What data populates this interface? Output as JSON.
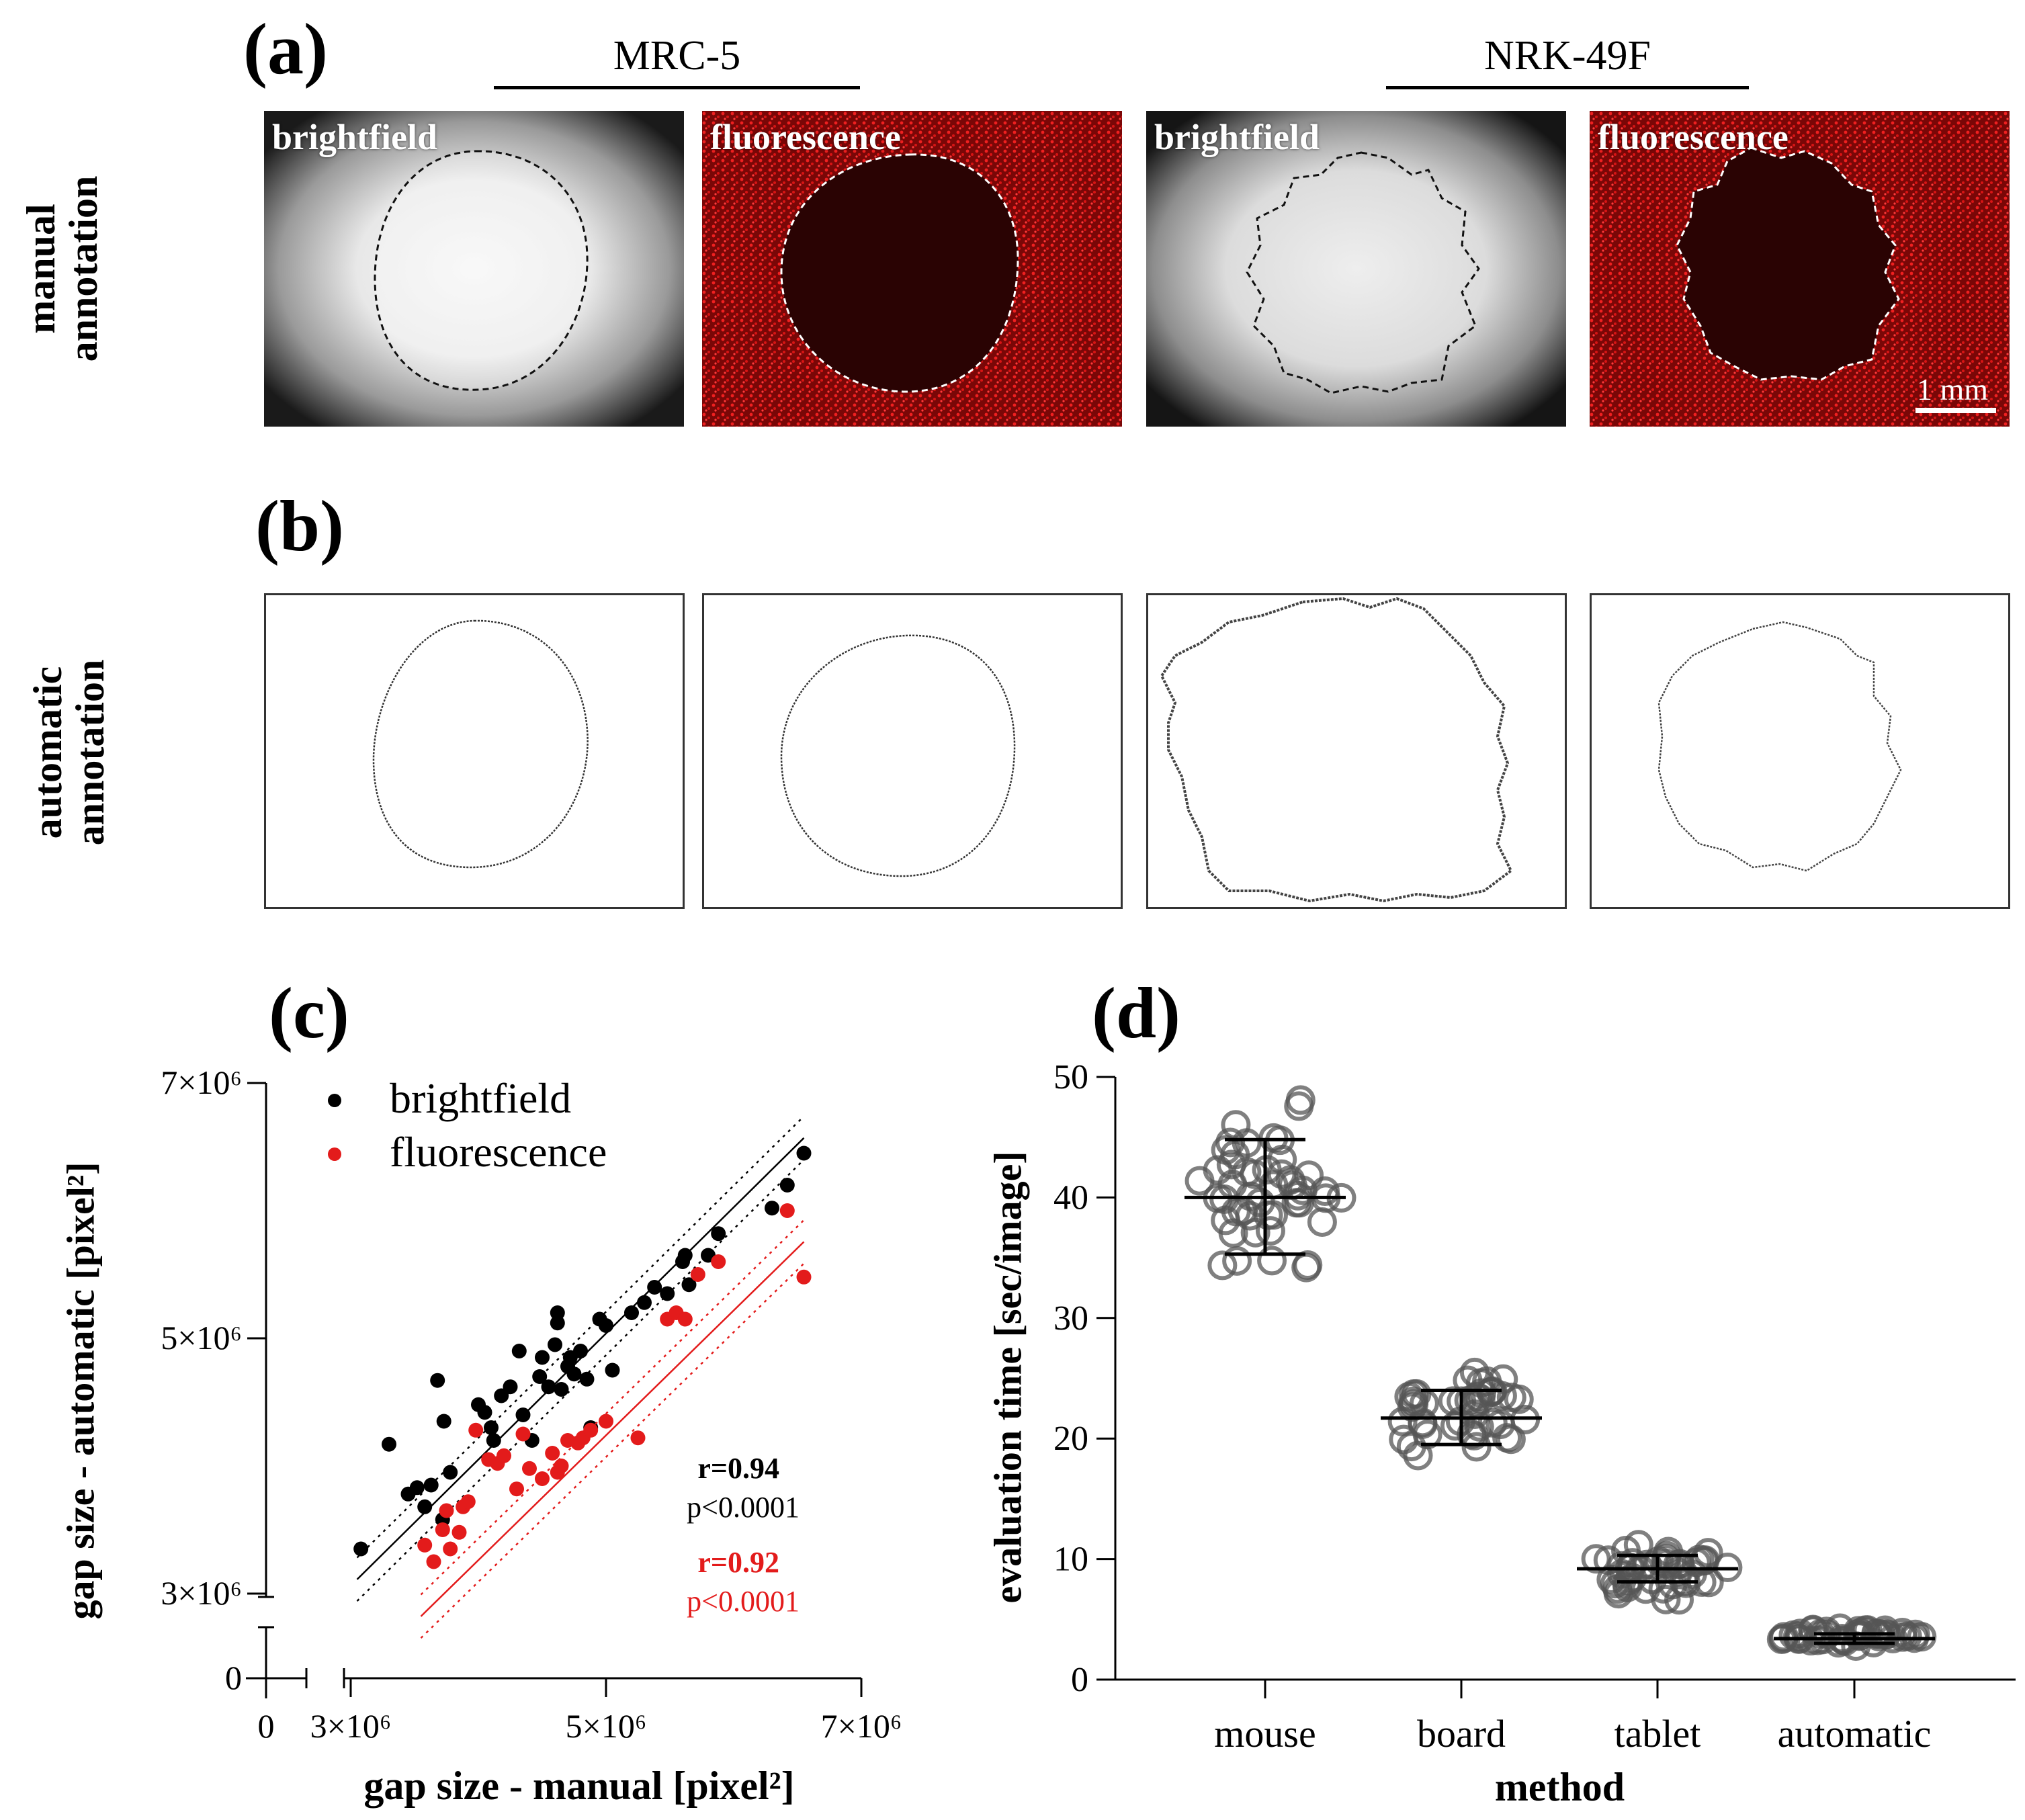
{
  "panels": {
    "a": "(a)",
    "b": "(b)",
    "c": "(c)",
    "d": "(d)"
  },
  "row_labels": {
    "manual": [
      "manual",
      "annotation"
    ],
    "automatic": [
      "automatic",
      "annotation"
    ]
  },
  "groups": [
    "MRC-5",
    "NRK-49F"
  ],
  "image_labels": [
    "brightfield",
    "fluorescence",
    "brightfield",
    "fluorescence"
  ],
  "scale_bar": "1 mm",
  "colors": {
    "red": "#e31b1b",
    "black": "#000000",
    "micro_red": "#c91010"
  },
  "chart_data": [
    {
      "type": "scatter",
      "panel": "(c)",
      "xlabel": "gap size - manual [pixel²]",
      "ylabel": "gap size - automatic [pixel²]",
      "xlim": [
        2500000,
        7000000
      ],
      "ylim": [
        2500000,
        7000000
      ],
      "x_ticks": [
        "0",
        "3×10⁶",
        "5×10⁶",
        "7×10⁶"
      ],
      "y_ticks": [
        "0",
        "3×10⁶",
        "5×10⁶",
        "7×10⁶"
      ],
      "axis_break": true,
      "legend_position": "top-left",
      "series": [
        {
          "name": "brightfield",
          "color": "#000000",
          "stats": [
            "r=0.94",
            "p<0.0001"
          ],
          "fit": {
            "slope": 0.988,
            "intercept": 98000
          },
          "points": [
            [
              3080000.0,
              3350000.0
            ],
            [
              3300000.0,
              4170000.0
            ],
            [
              3450000.0,
              3780000.0
            ],
            [
              3520000.0,
              3830000.0
            ],
            [
              3580000.0,
              3680000.0
            ],
            [
              3630000.0,
              3850000.0
            ],
            [
              3680000.0,
              4670000.0
            ],
            [
              3720000.0,
              3580000.0
            ],
            [
              3730000.0,
              4350000.0
            ],
            [
              3780000.0,
              3950000.0
            ],
            [
              4000000.0,
              4480000.0
            ],
            [
              4050000.0,
              4420000.0
            ],
            [
              4100000.0,
              4300000.0
            ],
            [
              4120000.0,
              4200000.0
            ],
            [
              4180000.0,
              4550000.0
            ],
            [
              4250000.0,
              4620000.0
            ],
            [
              4320000.0,
              4900000.0
            ],
            [
              4350000.0,
              4400000.0
            ],
            [
              4420000.0,
              4200000.0
            ],
            [
              4480000.0,
              4700000.0
            ],
            [
              4500000.0,
              4850000.0
            ],
            [
              4550000.0,
              4620000.0
            ],
            [
              4600000.0,
              4950000.0
            ],
            [
              4620000.0,
              5200000.0
            ],
            [
              4620000.0,
              5120000.0
            ],
            [
              4650000.0,
              4600000.0
            ],
            [
              4700000.0,
              4780000.0
            ],
            [
              4720000.0,
              4850000.0
            ],
            [
              4750000.0,
              4720000.0
            ],
            [
              4800000.0,
              4900000.0
            ],
            [
              4850000.0,
              4680000.0
            ],
            [
              4880000.0,
              4300000.0
            ],
            [
              4950000.0,
              5150000.0
            ],
            [
              5000000.0,
              5100000.0
            ],
            [
              5050000.0,
              4750000.0
            ],
            [
              5200000.0,
              5200000.0
            ],
            [
              5300000.0,
              5280000.0
            ],
            [
              5380000.0,
              5400000.0
            ],
            [
              5480000.0,
              5350000.0
            ],
            [
              5600000.0,
              5600000.0
            ],
            [
              5620000.0,
              5650000.0
            ],
            [
              5650000.0,
              5420000.0
            ],
            [
              5800000.0,
              5650000.0
            ],
            [
              5880000.0,
              5820000.0
            ],
            [
              6300000.0,
              6020000.0
            ],
            [
              6420000.0,
              6200000.0
            ],
            [
              6550000.0,
              6450000.0
            ]
          ]
        },
        {
          "name": "fluorescence",
          "color": "#e31b1b",
          "stats": [
            "r=0.92",
            "p<0.0001"
          ],
          "fit": {
            "slope": 0.978,
            "intercept": -650000
          },
          "points": [
            [
              3580000.0,
              3380000.0
            ],
            [
              3650000.0,
              3250000.0
            ],
            [
              3720000.0,
              3500000.0
            ],
            [
              3750000.0,
              3650000.0
            ],
            [
              3780000.0,
              3350000.0
            ],
            [
              3850000.0,
              3480000.0
            ],
            [
              3880000.0,
              3680000.0
            ],
            [
              3920000.0,
              3720000.0
            ],
            [
              3980000.0,
              4280000.0
            ],
            [
              4080000.0,
              4050000.0
            ],
            [
              4150000.0,
              4020000.0
            ],
            [
              4200000.0,
              4080000.0
            ],
            [
              4300000.0,
              3820000.0
            ],
            [
              4350000.0,
              4250000.0
            ],
            [
              4400000.0,
              3980000.0
            ],
            [
              4500000.0,
              3900000.0
            ],
            [
              4580000.0,
              4100000.0
            ],
            [
              4620000.0,
              3950000.0
            ],
            [
              4650000.0,
              4000000.0
            ],
            [
              4700000.0,
              4200000.0
            ],
            [
              4780000.0,
              4180000.0
            ],
            [
              4820000.0,
              4220000.0
            ],
            [
              4880000.0,
              4280000.0
            ],
            [
              5000000.0,
              4350000.0
            ],
            [
              5250000.0,
              4220000.0
            ],
            [
              5480000.0,
              5150000.0
            ],
            [
              5550000.0,
              5200000.0
            ],
            [
              5620000.0,
              5150000.0
            ],
            [
              5720000.0,
              5500000.0
            ],
            [
              5880000.0,
              5600000.0
            ],
            [
              6420000.0,
              6000000.0
            ],
            [
              6550000.0,
              5480000.0
            ]
          ]
        }
      ]
    },
    {
      "type": "scatter",
      "panel": "(d)",
      "xlabel": "method",
      "ylabel": "evaluation time [sec/image]",
      "ylim": [
        0,
        50
      ],
      "y_ticks": [
        0,
        10,
        20,
        30,
        40,
        50
      ],
      "categories": [
        "mouse",
        "board",
        "tablet",
        "automatic"
      ],
      "summary": [
        {
          "category": "mouse",
          "mean": 40.0,
          "sd_low": 35.3,
          "sd_high": 44.8,
          "min": 30.2,
          "max": 49.8
        },
        {
          "category": "board",
          "mean": 21.7,
          "sd_low": 19.5,
          "sd_high": 24.0,
          "min": 17.8,
          "max": 26.5
        },
        {
          "category": "tablet",
          "mean": 9.2,
          "sd_low": 8.1,
          "sd_high": 10.3,
          "min": 6.3,
          "max": 11.6
        },
        {
          "category": "automatic",
          "mean": 3.4,
          "sd_low": 3.0,
          "sd_high": 3.8,
          "min": 2.6,
          "max": 4.6
        }
      ],
      "points_per_group": [
        48,
        44,
        44,
        44
      ]
    }
  ]
}
